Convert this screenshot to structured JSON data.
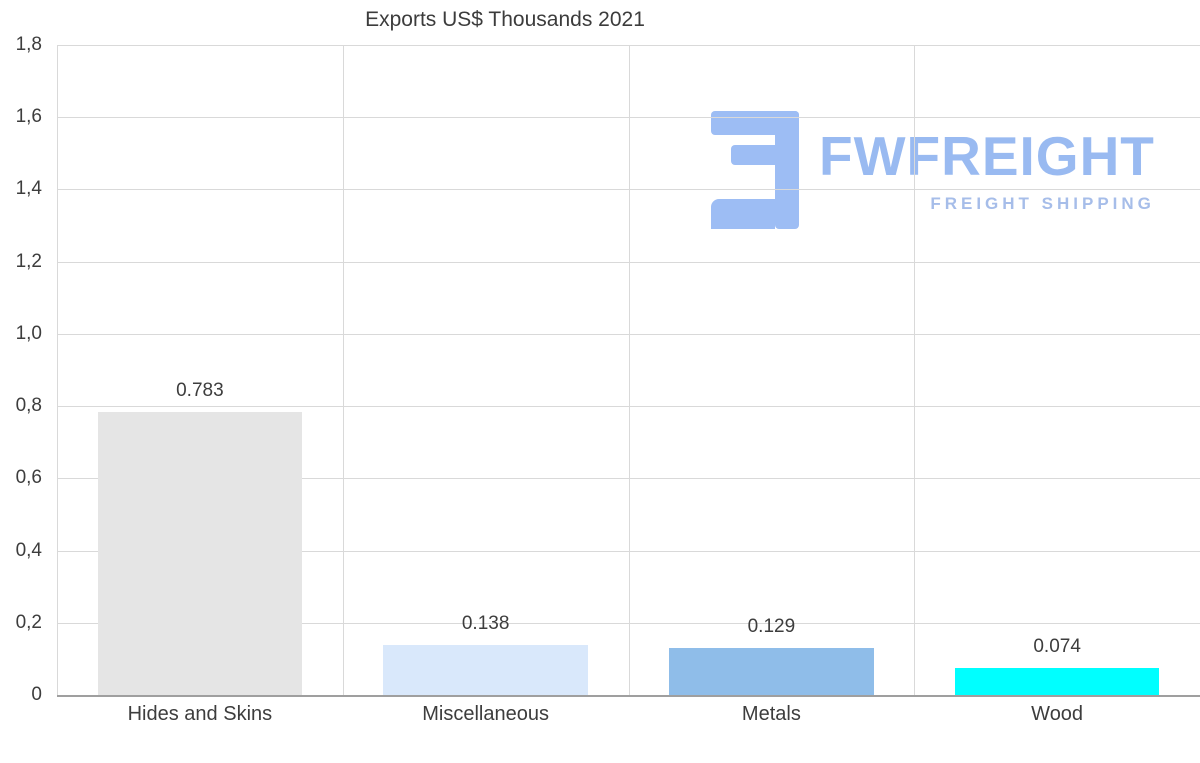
{
  "chart_data": {
    "type": "bar",
    "title": "Exports US$ Thousands 2021",
    "categories": [
      "Hides and Skins",
      "Miscellaneous",
      "Metals",
      "Wood"
    ],
    "values": [
      0.783,
      0.138,
      0.129,
      0.074
    ],
    "value_labels": [
      "0.783",
      "0.138",
      "0.129",
      "0.074"
    ],
    "bar_colors": [
      "#e5e5e5",
      "#d9e8fb",
      "#8fbde9",
      "#00ffff"
    ],
    "ylim": [
      0,
      1.8
    ],
    "ytick_values": [
      0,
      0.2,
      0.4,
      0.6,
      0.8,
      1.0,
      1.2,
      1.4,
      1.6,
      1.8
    ],
    "ytick_labels": [
      "0",
      "0,2",
      "0,4",
      "0,6",
      "0,8",
      "1,0",
      "1,2",
      "1,4",
      "1,6",
      "1,8"
    ],
    "grid": "on",
    "legend": "none",
    "xlabel": "",
    "ylabel": ""
  },
  "watermark": {
    "name": "FWFREIGHT",
    "subtitle": "FREIGHT SHIPPING",
    "logo_icon": "fwfreight-logo-icon",
    "color": "#99baf1"
  }
}
